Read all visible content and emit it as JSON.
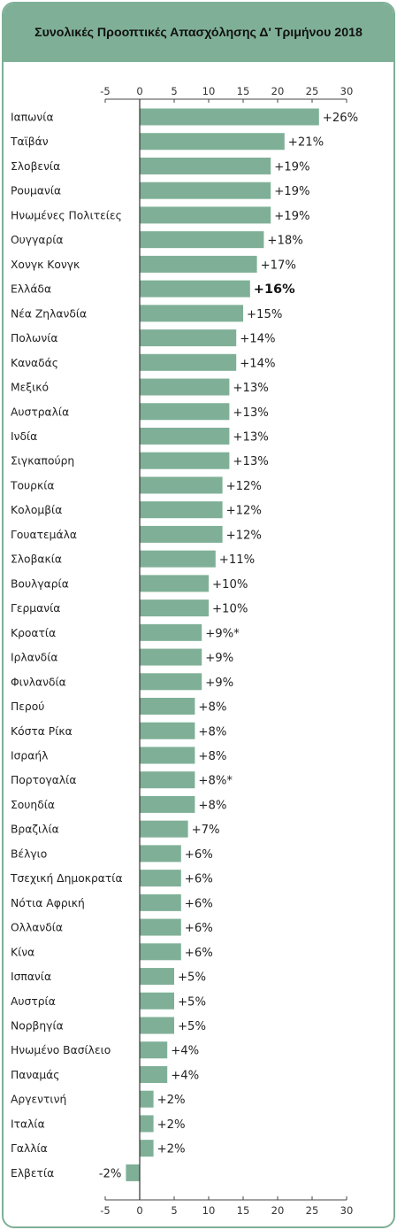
{
  "title": "Συνολικές Προοπτικές Απασχόλησης Δ' Τριμήνου 2018",
  "colors": {
    "bar": "#7fb097",
    "frame": "#7fb097"
  },
  "chart_data": {
    "type": "bar",
    "orientation": "horizontal",
    "xlim": [
      -5,
      30
    ],
    "ticks": [
      -5,
      0,
      5,
      10,
      15,
      20,
      25,
      30
    ],
    "tick_labels": [
      "-5",
      "0",
      "5",
      "10",
      "15",
      "20",
      "25",
      "30"
    ],
    "grid": false,
    "highlight": "Ελλάδα",
    "categories": [
      "Ιαπωνία",
      "Ταϊβάν",
      "Σλοβενία",
      "Ρουμανία",
      "Ηνωμένες Πολιτείες",
      "Ουγγαρία",
      "Χονγκ Κονγκ",
      "Ελλάδα",
      "Νέα Ζηλανδία",
      "Πολωνία",
      "Καναδάς",
      "Μεξικό",
      "Αυστραλία",
      "Ινδία",
      "Σιγκαπούρη",
      "Τουρκία",
      "Κολομβία",
      "Γουατεμάλα",
      "Σλοβακία",
      "Βουλγαρία",
      "Γερμανία",
      "Κροατία",
      "Ιρλανδία",
      "Φινλανδία",
      "Περού",
      "Κόστα Ρίκα",
      "Ισραήλ",
      "Πορτογαλία",
      "Σουηδία",
      "Βραζιλία",
      "Βέλγιο",
      "Τσεχική Δημοκρατία",
      "Νότια Αφρική",
      "Ολλανδία",
      "Κίνα",
      "Ισπανία",
      "Αυστρία",
      "Νορβηγία",
      "Ηνωμένο Βασίλειο",
      "Παναμάς",
      "Αργεντινή",
      "Ιταλία",
      "Γαλλία",
      "Ελβετία"
    ],
    "values": [
      26,
      21,
      19,
      19,
      19,
      18,
      17,
      16,
      15,
      14,
      14,
      13,
      13,
      13,
      13,
      12,
      12,
      12,
      11,
      10,
      10,
      9,
      9,
      9,
      8,
      8,
      8,
      8,
      8,
      7,
      6,
      6,
      6,
      6,
      6,
      5,
      5,
      5,
      4,
      4,
      2,
      2,
      2,
      -2
    ],
    "value_labels": [
      "+26%",
      "+21%",
      "+19%",
      "+19%",
      "+19%",
      "+18%",
      "+17%",
      "+16%",
      "+15%",
      "+14%",
      "+14%",
      "+13%",
      "+13%",
      "+13%",
      "+13%",
      "+12%",
      "+12%",
      "+12%",
      "+11%",
      "+10%",
      "+10%",
      "+9%*",
      "+9%",
      "+9%",
      "+8%",
      "+8%",
      "+8%",
      "+8%*",
      "+8%",
      "+7%",
      "+6%",
      "+6%",
      "+6%",
      "+6%",
      "+6%",
      "+5%",
      "+5%",
      "+5%",
      "+4%",
      "+4%",
      "+2%",
      "+2%",
      "+2%",
      "-2%"
    ]
  }
}
